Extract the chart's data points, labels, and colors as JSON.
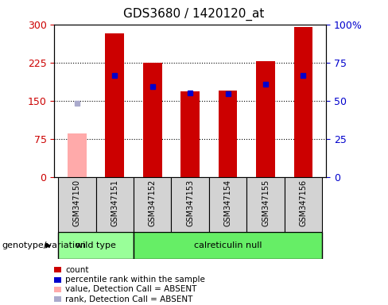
{
  "title": "GDS3680 / 1420120_at",
  "samples": [
    "GSM347150",
    "GSM347151",
    "GSM347152",
    "GSM347153",
    "GSM347154",
    "GSM347155",
    "GSM347156"
  ],
  "count_values": [
    null,
    283,
    225,
    168,
    170,
    228,
    295
  ],
  "count_absent_value": 85,
  "absent_sample_idx": 0,
  "percentile_values": [
    null,
    200,
    178,
    165,
    163,
    183,
    200
  ],
  "percentile_absent_value": 145,
  "left_ylim": [
    0,
    300
  ],
  "right_ylim": [
    0,
    100
  ],
  "left_yticks": [
    0,
    75,
    150,
    225,
    300
  ],
  "right_yticks": [
    0,
    25,
    50,
    75,
    100
  ],
  "right_yticklabels": [
    "0",
    "25",
    "50",
    "75",
    "100%"
  ],
  "bar_color_present": "#cc0000",
  "bar_color_absent": "#ffaaaa",
  "percentile_color_present": "#0000cc",
  "percentile_color_absent": "#aaaacc",
  "bar_width": 0.5,
  "wt_samples": [
    0,
    1
  ],
  "cn_samples": [
    2,
    3,
    4,
    5,
    6
  ],
  "wt_label": "wild type",
  "wt_color": "#99ff99",
  "cn_label": "calreticulin null",
  "cn_color": "#66ee66",
  "group_row_label": "genotype/variation",
  "legend_items": [
    {
      "color": "#cc0000",
      "label": "count"
    },
    {
      "color": "#0000cc",
      "label": "percentile rank within the sample"
    },
    {
      "color": "#ffaaaa",
      "label": "value, Detection Call = ABSENT"
    },
    {
      "color": "#aaaacc",
      "label": "rank, Detection Call = ABSENT"
    }
  ],
  "tick_label_color_left": "#cc0000",
  "tick_label_color_right": "#0000cc",
  "sample_box_color": "#d3d3d3",
  "figsize": [
    4.88,
    3.84
  ],
  "dpi": 100
}
